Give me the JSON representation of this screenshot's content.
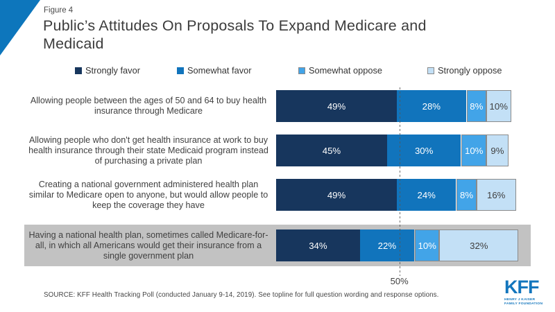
{
  "figure_label": "Figure 4",
  "title": "Public’s Attitudes On Proposals To Expand Medicare and Medicaid",
  "source": "SOURCE: KFF Health Tracking Poll (conducted January 9-14, 2019). See topline for full question wording and response options.",
  "logo": {
    "text": "KFF",
    "line1": "HENRY J KAISER",
    "line2": "FAMILY FOUNDATION",
    "brand_color": "#1376bd"
  },
  "chart_data": {
    "type": "bar",
    "stacked": true,
    "orientation": "horizontal",
    "xlim": [
      0,
      100
    ],
    "value_suffix": "%",
    "legend_position": "top",
    "grid": false,
    "reference_line": {
      "value": 50,
      "label": "50%"
    },
    "highlighted_category_index": 3,
    "highlight_color": "#c2c2c2",
    "categories": [
      "Allowing people between the ages of 50 and 64 to buy health insurance through Medicare",
      "Allowing people who don't get health insurance at work to buy health insurance through their state Medicaid program instead of purchasing a private plan",
      "Creating a national government administered health plan similar to Medicare open to anyone, but would allow people to keep the coverage they have",
      "Having a national health plan, sometimes called Medicare-for-all, in which all Americans would get their insurance from a single government plan"
    ],
    "series": [
      {
        "name": "Strongly favor",
        "color": "#17365d",
        "text_color": "#ffffff",
        "border": null,
        "values": [
          49,
          45,
          49,
          34
        ]
      },
      {
        "name": "Somewhat favor",
        "color": "#1174bc",
        "text_color": "#ffffff",
        "border": null,
        "values": [
          28,
          30,
          24,
          22
        ]
      },
      {
        "name": "Somewhat oppose",
        "color": "#42a4e8",
        "text_color": "#ffffff",
        "border": "#8a8a8a",
        "values": [
          8,
          10,
          8,
          10
        ]
      },
      {
        "name": "Strongly oppose",
        "color": "#c3e0f6",
        "text_color": "#404040",
        "border": "#8a8a8a",
        "values": [
          10,
          9,
          16,
          32
        ]
      }
    ]
  }
}
